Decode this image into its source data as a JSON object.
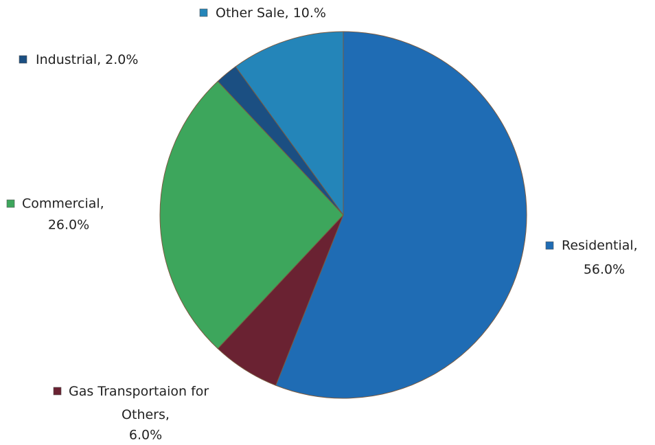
{
  "chart_data": {
    "type": "pie",
    "categories": [
      "Residential,",
      "Gas Transportaion for Others,",
      "Commercial,",
      "Industrial,",
      "Other Sale,"
    ],
    "values": [
      56,
      6,
      26,
      2,
      10
    ],
    "value_labels": [
      "56.0%",
      "6.0%",
      "26.0%",
      "2.0%",
      "10.%"
    ],
    "colors": [
      "#1f6cb4",
      "#6a2232",
      "#3da65c",
      "#1b4f82",
      "#2485b9"
    ]
  }
}
